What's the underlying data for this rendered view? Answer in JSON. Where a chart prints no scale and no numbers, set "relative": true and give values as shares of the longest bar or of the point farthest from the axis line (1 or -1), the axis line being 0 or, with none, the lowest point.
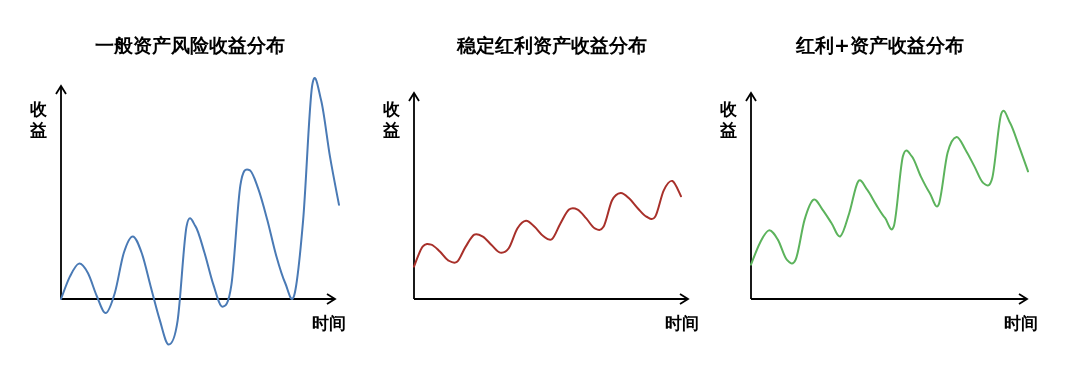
{
  "chart_data": [
    {
      "type": "line",
      "title": "一般资产风险收益分布",
      "xlabel": "时间",
      "ylabel": "收益",
      "relative": true,
      "categories": [
        null,
        null,
        null,
        null,
        null,
        null,
        null,
        null,
        null,
        null,
        null,
        null,
        null,
        null,
        null,
        null,
        null,
        null,
        null,
        null,
        null,
        null,
        null,
        null,
        null,
        null,
        null,
        null,
        null,
        null,
        null,
        null
      ],
      "series": [
        {
          "color": "#4a7ab5",
          "values": [
            0,
            0.106,
            0.166,
            0.122,
            0.013,
            -0.066,
            0.028,
            0.216,
            0.294,
            0.216,
            0.059,
            -0.097,
            -0.214,
            -0.103,
            0.341,
            0.341,
            0.217,
            0.066,
            -0.036,
            0.066,
            0.533,
            0.606,
            0.517,
            0.372,
            0.203,
            0.075,
            0.016,
            0.37,
            1,
            0.934,
            0.667,
            0.442
          ]
        }
      ]
    },
    {
      "type": "line",
      "title": "稳定红利资产收益分布",
      "xlabel": "时间",
      "ylabel": "收益",
      "relative": true,
      "categories": [
        null,
        null,
        null,
        null,
        null,
        null,
        null,
        null,
        null,
        null,
        null,
        null,
        null,
        null,
        null,
        null,
        null,
        null,
        null,
        null,
        null,
        null,
        null,
        null,
        null,
        null,
        null,
        null,
        null,
        null,
        null,
        null
      ],
      "series": [
        {
          "color": "#a8302a",
          "values": [
            0.275,
            0.444,
            0.461,
            0.402,
            0.326,
            0.315,
            0.444,
            0.545,
            0.528,
            0.458,
            0.393,
            0.43,
            0.598,
            0.663,
            0.612,
            0.534,
            0.506,
            0.64,
            0.758,
            0.758,
            0.683,
            0.598,
            0.612,
            0.837,
            0.899,
            0.851,
            0.767,
            0.697,
            0.697,
            0.921,
            1,
            0.871
          ]
        }
      ]
    },
    {
      "type": "line",
      "title": "红利+资产收益分布",
      "xlabel": "时间",
      "ylabel": "收益",
      "relative": true,
      "categories": [
        null,
        null,
        null,
        null,
        null,
        null,
        null,
        null,
        null,
        null,
        null,
        null,
        null,
        null,
        null,
        null,
        null,
        null,
        null,
        null,
        null,
        null,
        null,
        null,
        null,
        null,
        null,
        null,
        null,
        null,
        null,
        null
      ],
      "series": [
        {
          "color": "#5cb35c",
          "values": [
            0.186,
            0.303,
            0.371,
            0.321,
            0.213,
            0.213,
            0.429,
            0.537,
            0.483,
            0.411,
            0.339,
            0.465,
            0.636,
            0.591,
            0.51,
            0.438,
            0.396,
            0.771,
            0.771,
            0.663,
            0.573,
            0.51,
            0.79,
            0.876,
            0.807,
            0.717,
            0.627,
            0.654,
            1,
            0.951,
            0.825,
            0.69
          ]
        }
      ]
    }
  ]
}
